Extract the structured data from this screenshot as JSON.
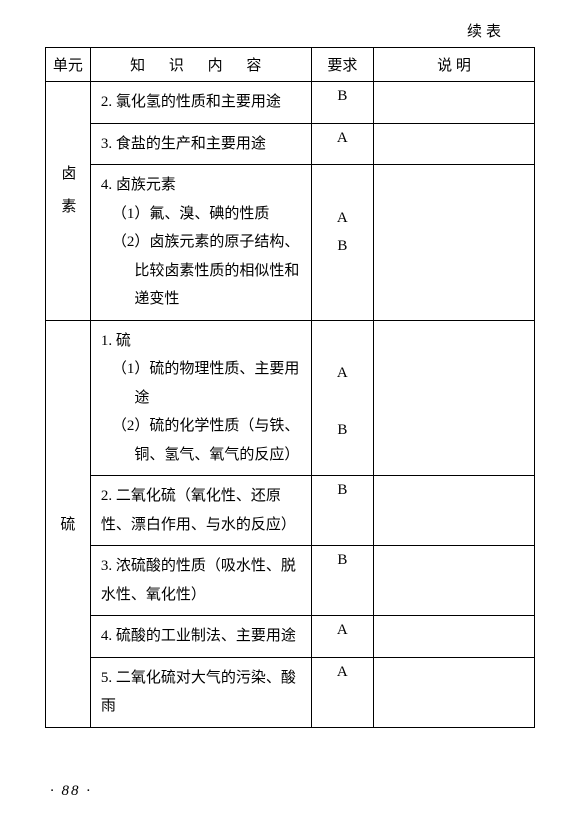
{
  "continued_label": "续表",
  "headers": {
    "unit": "单元",
    "content": "知 识 内 容",
    "req": "要求",
    "desc": "说  明"
  },
  "unit1": "卤素",
  "rows1": [
    {
      "text": "2. 氯化氢的性质和主要用途",
      "req": "B"
    },
    {
      "text": "3. 食盐的生产和主要用途",
      "req": "A"
    }
  ],
  "row1_4": {
    "head": "4. 卤族元素",
    "sub1": "（1）氟、溴、碘的性质",
    "sub2": "（2）卤族元素的原子结构、比较卤素性质的相似性和递变性",
    "req1": "A",
    "req2": "B"
  },
  "unit2": "硫",
  "row2_1": {
    "head": "1. 硫",
    "sub1": "（1）硫的物理性质、主要用途",
    "sub2": "（2）硫的化学性质（与铁、铜、氢气、氧气的反应）",
    "req1": "A",
    "req2": "B"
  },
  "rows2": [
    {
      "text": "2. 二氧化硫（氧化性、还原性、漂白作用、与水的反应）",
      "req": "B"
    },
    {
      "text": "3. 浓硫酸的性质（吸水性、脱水性、氧化性）",
      "req": "B"
    },
    {
      "text": "4. 硫酸的工业制法、主要用途",
      "req": "A"
    },
    {
      "text": "5. 二氧化硫对大气的污染、酸雨",
      "req": "A"
    }
  ],
  "pagenum": "· 88 ·"
}
